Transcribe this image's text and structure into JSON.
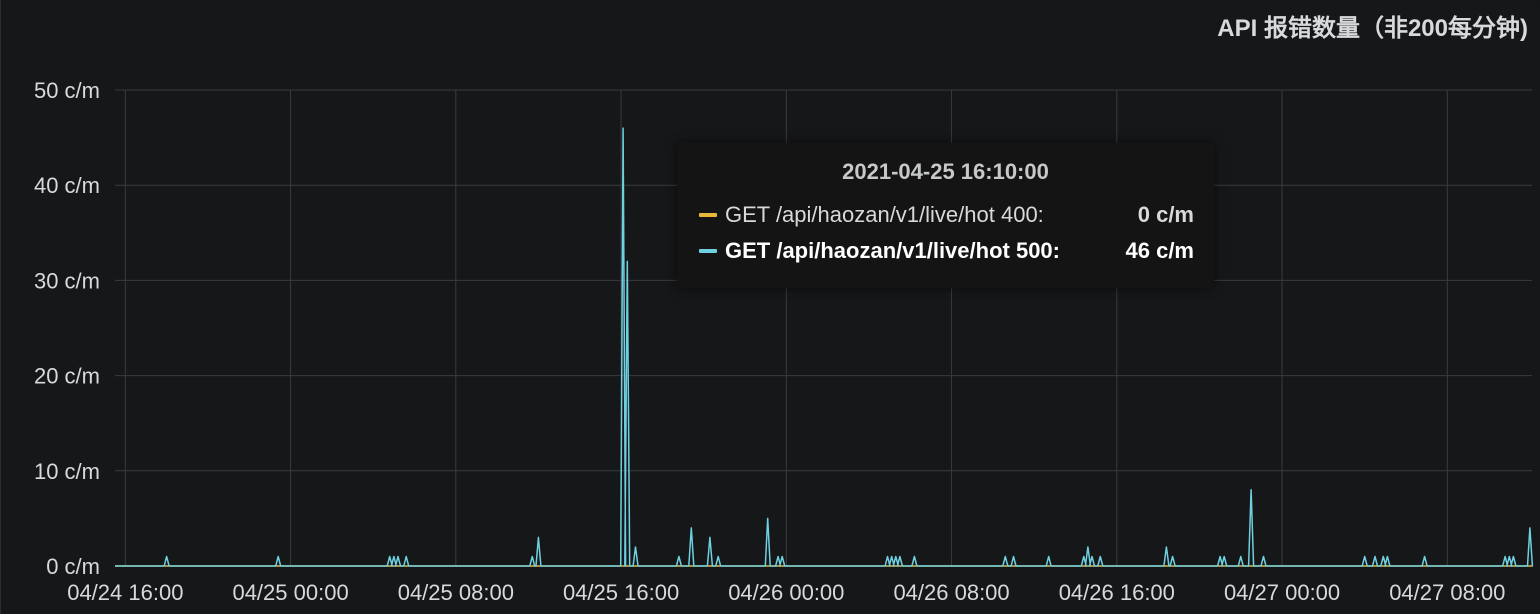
{
  "panel": {
    "title": "API 报错数量（非200每分钟)"
  },
  "tooltip": {
    "time": "2021-04-25 16:10:00",
    "rows": [
      {
        "name": "GET /api/haozan/v1/live/hot 400:",
        "value": "0 c/m",
        "color": "#eab839",
        "highlight": false
      },
      {
        "name": "GET /api/haozan/v1/live/hot 500:",
        "value": "46 c/m",
        "color": "#6ed0e0",
        "highlight": true
      }
    ]
  },
  "colors": {
    "background": "#161719",
    "grid": "#3a3b3e",
    "text": "#d8d9da",
    "series_400": "#eab839",
    "series_500": "#6ed0e0"
  },
  "chart_data": {
    "type": "line",
    "y_ticks": [
      "0 c/m",
      "10 c/m",
      "20 c/m",
      "30 c/m",
      "40 c/m",
      "50 c/m"
    ],
    "ylim": [
      0,
      50
    ],
    "x_ticks": [
      "04/24 16:00",
      "04/25 00:00",
      "04/25 08:00",
      "04/25 16:00",
      "04/26 00:00",
      "04/26 08:00",
      "04/26 16:00",
      "04/27 00:00",
      "04/27 08:00"
    ],
    "x_range_hours": [
      -0.5,
      68.1
    ],
    "x_unit": "hours since 04/24 16:00",
    "grid": true,
    "series": [
      {
        "name": "GET /api/haozan/v1/live/hot 400",
        "color": "#eab839",
        "points": [
          [
            -0.5,
            0
          ],
          [
            68.1,
            0
          ]
        ]
      },
      {
        "name": "GET /api/haozan/v1/live/hot 500",
        "color": "#6ed0e0",
        "spikes": [
          [
            2.0,
            1
          ],
          [
            7.4,
            1
          ],
          [
            12.8,
            1
          ],
          [
            13.0,
            1
          ],
          [
            13.2,
            1
          ],
          [
            13.6,
            1
          ],
          [
            19.7,
            1
          ],
          [
            20.0,
            3
          ],
          [
            24.1,
            46
          ],
          [
            24.3,
            32
          ],
          [
            24.7,
            2
          ],
          [
            26.8,
            1
          ],
          [
            27.4,
            4
          ],
          [
            28.3,
            3
          ],
          [
            28.7,
            1
          ],
          [
            31.1,
            5
          ],
          [
            31.6,
            1
          ],
          [
            31.8,
            1
          ],
          [
            36.9,
            1
          ],
          [
            37.1,
            1
          ],
          [
            37.3,
            1
          ],
          [
            37.5,
            1
          ],
          [
            38.2,
            1
          ],
          [
            42.6,
            1
          ],
          [
            43.0,
            1
          ],
          [
            44.7,
            1
          ],
          [
            46.4,
            1
          ],
          [
            46.6,
            2
          ],
          [
            46.8,
            1
          ],
          [
            47.2,
            1
          ],
          [
            50.4,
            2
          ],
          [
            50.7,
            1
          ],
          [
            53.0,
            1
          ],
          [
            53.2,
            1
          ],
          [
            54.0,
            1
          ],
          [
            54.5,
            8
          ],
          [
            55.1,
            1
          ],
          [
            60.0,
            1
          ],
          [
            60.5,
            1
          ],
          [
            60.9,
            1
          ],
          [
            61.1,
            1
          ],
          [
            62.9,
            1
          ],
          [
            66.8,
            1
          ],
          [
            67.0,
            1
          ],
          [
            67.2,
            1
          ],
          [
            68.0,
            4
          ]
        ]
      }
    ]
  }
}
